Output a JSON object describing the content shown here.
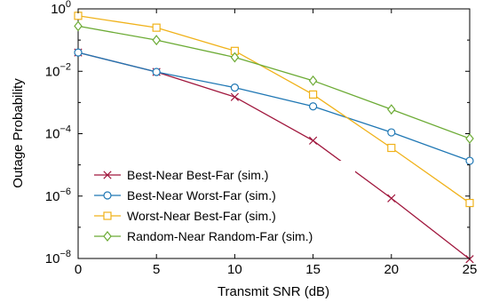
{
  "chart_data": {
    "type": "line",
    "xlabel": "Transmit SNR (dB)",
    "ylabel": "Outage Probability",
    "x": [
      0,
      5,
      10,
      15,
      20,
      25
    ],
    "xlim": [
      0,
      25
    ],
    "ylim": [
      1e-08,
      1
    ],
    "yscale": "log",
    "x_ticks": [
      "0",
      "5",
      "10",
      "15",
      "20",
      "25"
    ],
    "y_ticks": [
      {
        "base": "10",
        "exp": "0"
      },
      {
        "base": "10",
        "exp": "−2"
      },
      {
        "base": "10",
        "exp": "−4"
      },
      {
        "base": "10",
        "exp": "−6"
      },
      {
        "base": "10",
        "exp": "−8"
      }
    ],
    "grid": false,
    "legend_position": "bottom-left",
    "series": [
      {
        "name": "Best-Near Best-Far (sim.)",
        "color": "#a0173d",
        "marker": "x",
        "values": [
          0.04,
          0.0095,
          0.0015,
          6e-05,
          8.5e-07,
          9.5e-09
        ]
      },
      {
        "name": "Best-Near Worst-Far (sim.)",
        "color": "#1f77b4",
        "marker": "circle",
        "values": [
          0.04,
          0.0095,
          0.003,
          0.00075,
          0.00011,
          1.35e-05
        ]
      },
      {
        "name": "Worst-Near Best-Far (sim.)",
        "color": "#f0b21a",
        "marker": "square",
        "values": [
          0.6,
          0.25,
          0.045,
          0.0018,
          3.5e-05,
          6e-07
        ]
      },
      {
        "name": "Random-Near Random-Far (sim.)",
        "color": "#6cab35",
        "marker": "diamond",
        "values": [
          0.28,
          0.1,
          0.028,
          0.005,
          0.0006,
          7e-05
        ]
      }
    ]
  }
}
